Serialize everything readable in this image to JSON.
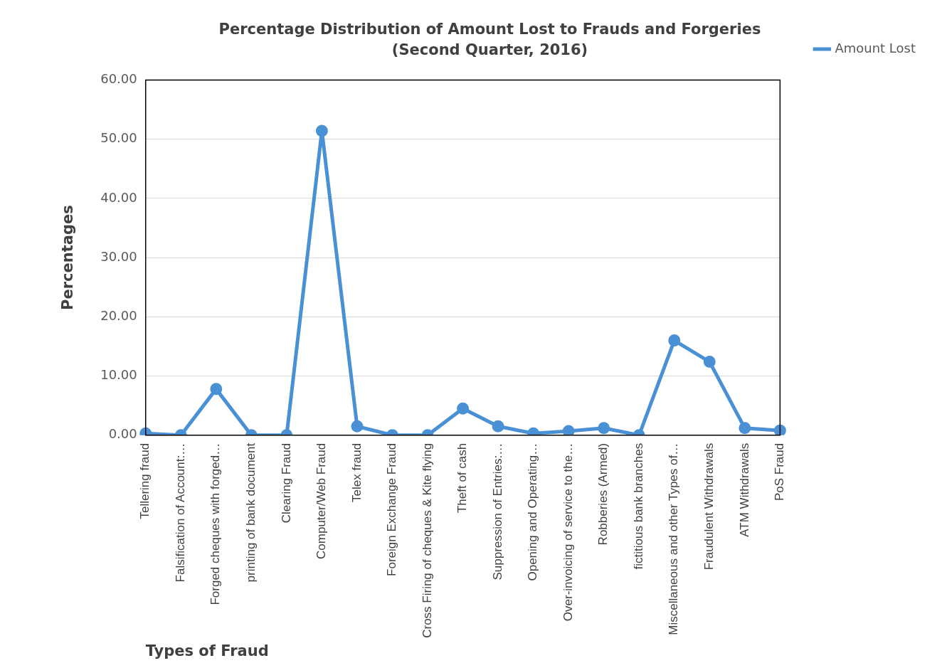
{
  "chart_data": {
    "type": "line",
    "title": "Percentage Distribution of Amount Lost to Frauds and Forgeries",
    "subtitle": "(Second Quarter, 2016)",
    "xlabel": "Types of Fraud",
    "ylabel": "Percentages",
    "categories": [
      "Tellering fraud",
      "Falsification of Account:…",
      "Forged cheques with forged…",
      "printing of bank document",
      "Clearing Fraud",
      "Computer/Web Fraud",
      "Telex fraud",
      "Foreign Exchange Fraud",
      "Cross Firing of cheques & Kite flying",
      "Theft of cash",
      "Suppression of Entries:…",
      "Opening and Operating…",
      "Over-invoicing of service to the…",
      "Robberies (Armed)",
      "fictitious bank branches",
      "Miscellaneous and other Types of…",
      "Fraudulent Withdrawals",
      "ATM Withdrawals",
      "PoS Fraud"
    ],
    "series": [
      {
        "name": "Amount Lost",
        "color": "#4a90d4",
        "values": [
          0.3,
          0,
          7.8,
          0,
          0,
          51.4,
          1.5,
          0,
          0,
          4.5,
          1.5,
          0.3,
          0.7,
          1.2,
          0,
          16.0,
          12.4,
          1.2,
          0.8
        ]
      }
    ],
    "ylim": [
      0,
      60
    ],
    "yticks": [
      {
        "value": 0,
        "label": "0.00"
      },
      {
        "value": 10,
        "label": "10.00"
      },
      {
        "value": 20,
        "label": "20.00"
      },
      {
        "value": 30,
        "label": "30.00"
      },
      {
        "value": 40,
        "label": "40.00"
      },
      {
        "value": 50,
        "label": "50.00"
      },
      {
        "value": 60,
        "label": "60.00"
      }
    ],
    "grid": "y",
    "legend": "right",
    "marker": "circle",
    "line_style": "solid"
  }
}
